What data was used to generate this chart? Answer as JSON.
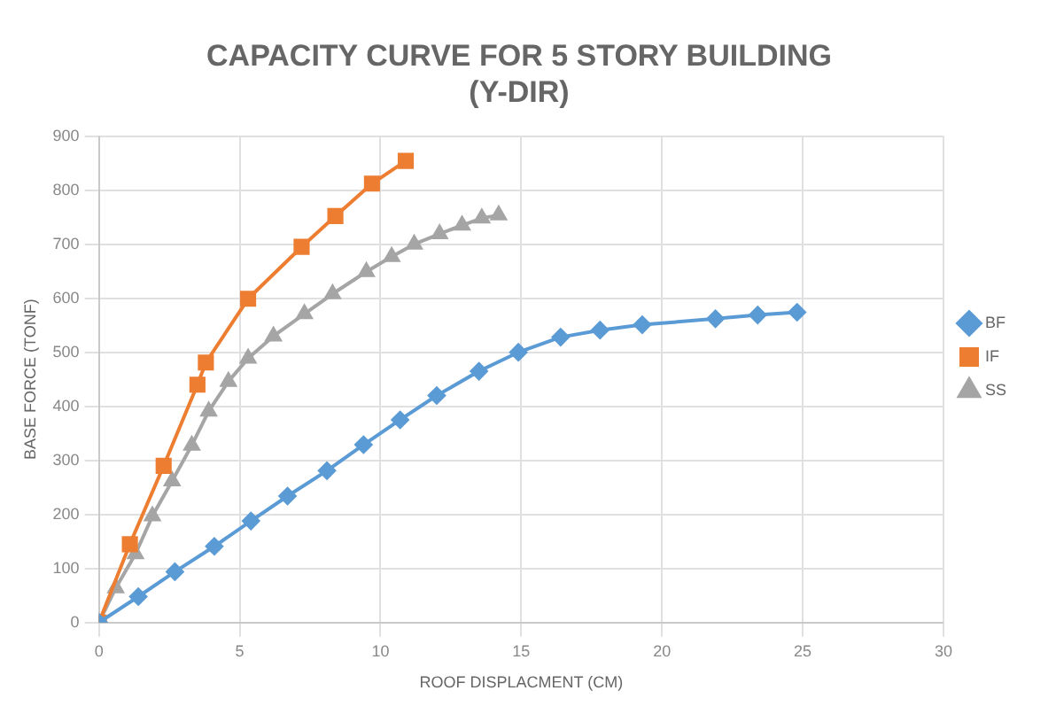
{
  "chart_data": {
    "type": "line",
    "title": "CAPACITY CURVE FOR 5 STORY BUILDING\n(Y-DIR)",
    "xlabel": "ROOF DISPLACMENT (CM)",
    "ylabel": "BASE FORCE (TONF)",
    "xlim": [
      0,
      30
    ],
    "xticks": [
      0,
      5,
      10,
      15,
      20,
      25,
      30
    ],
    "ylim": [
      0,
      900
    ],
    "yticks": [
      0,
      100,
      200,
      300,
      400,
      500,
      600,
      700,
      800,
      900
    ],
    "grid": true,
    "legend": "right",
    "series": [
      {
        "name": "BF",
        "color": "#5b9bd5",
        "marker": "diamond",
        "x": [
          0,
          1.4,
          2.7,
          4.1,
          5.4,
          6.7,
          8.1,
          9.4,
          10.7,
          12.0,
          13.5,
          14.9,
          16.4,
          17.8,
          19.3,
          21.9,
          23.4,
          24.8
        ],
        "values": [
          0,
          48,
          94,
          141,
          188,
          234,
          281,
          329,
          375,
          420,
          465,
          500,
          528,
          541,
          551,
          562,
          569,
          574
        ]
      },
      {
        "name": "IF",
        "color": "#ed7d31",
        "marker": "square",
        "x": [
          0,
          1.1,
          2.3,
          3.5,
          3.8,
          5.3,
          7.2,
          8.4,
          9.7,
          10.9
        ],
        "values": [
          0,
          145,
          290,
          440,
          481,
          599,
          695,
          752,
          812,
          854
        ]
      },
      {
        "name": "SS",
        "color": "#a5a5a5",
        "marker": "triangle",
        "x": [
          0,
          0.6,
          1.3,
          1.9,
          2.6,
          3.3,
          3.9,
          4.6,
          5.3,
          6.2,
          7.3,
          8.3,
          9.5,
          10.4,
          11.2,
          12.1,
          12.9,
          13.6,
          14.2
        ],
        "values": [
          0,
          64,
          127,
          197,
          262,
          328,
          391,
          446,
          489,
          530,
          571,
          608,
          649,
          677,
          700,
          719,
          735,
          748,
          754
        ]
      }
    ]
  }
}
